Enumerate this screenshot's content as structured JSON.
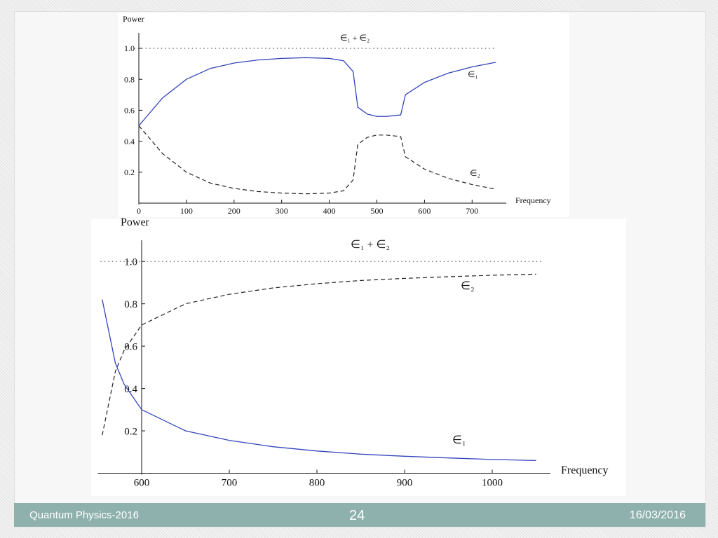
{
  "chart_data": [
    {
      "type": "line",
      "y_label": "Power",
      "x_label": "Frequency",
      "xlim": [
        0,
        760
      ],
      "ylim": [
        0,
        1.1
      ],
      "xticks": [
        0,
        100,
        200,
        300,
        400,
        500,
        600,
        700
      ],
      "yticks": [
        0.2,
        0.4,
        0.6,
        0.8,
        {
          "value": 1,
          "label": "1.0"
        }
      ],
      "series": [
        {
          "name": "∈₁ + ∈₂",
          "color": "#555555",
          "style": "dotted",
          "x": [
            -10,
            750
          ],
          "values": [
            1,
            1
          ]
        },
        {
          "name": "∈₁",
          "color": "#3344bb",
          "style": "solid",
          "x": [
            0,
            50,
            100,
            150,
            200,
            250,
            300,
            350,
            400,
            430,
            450,
            460,
            480,
            500,
            520,
            550,
            560,
            600,
            650,
            700,
            750
          ],
          "values": [
            0.5,
            0.68,
            0.8,
            0.87,
            0.905,
            0.925,
            0.935,
            0.94,
            0.935,
            0.92,
            0.85,
            0.62,
            0.575,
            0.56,
            0.56,
            0.57,
            0.7,
            0.78,
            0.84,
            0.88,
            0.91
          ]
        },
        {
          "name": "∈₂",
          "color": "#222222",
          "style": "dashed",
          "x": [
            0,
            50,
            100,
            150,
            200,
            250,
            300,
            350,
            400,
            430,
            450,
            460,
            480,
            500,
            520,
            550,
            560,
            600,
            650,
            700,
            750
          ],
          "values": [
            0.5,
            0.32,
            0.2,
            0.13,
            0.095,
            0.075,
            0.065,
            0.06,
            0.065,
            0.08,
            0.15,
            0.38,
            0.425,
            0.44,
            0.44,
            0.43,
            0.3,
            0.22,
            0.16,
            0.12,
            0.09
          ]
        }
      ]
    },
    {
      "type": "line",
      "y_label": "Power",
      "x_label": "Frequency",
      "xlim": [
        550,
        1060
      ],
      "ylim": [
        0,
        1.1
      ],
      "xticks": [
        600,
        700,
        800,
        900,
        1000
      ],
      "yticks": [
        0.2,
        0.4,
        0.6,
        0.8,
        {
          "value": 1,
          "label": "1.0"
        }
      ],
      "series": [
        {
          "name": "∈₁ + ∈₂",
          "color": "#555555",
          "style": "dotted",
          "x": [
            553,
            1057
          ],
          "values": [
            1,
            1
          ]
        },
        {
          "name": "∈₂",
          "color": "#222222",
          "style": "dashed",
          "x": [
            555,
            570,
            580,
            600,
            650,
            700,
            750,
            800,
            850,
            900,
            950,
            1000,
            1050
          ],
          "values": [
            0.18,
            0.48,
            0.58,
            0.7,
            0.8,
            0.845,
            0.875,
            0.895,
            0.91,
            0.92,
            0.928,
            0.935,
            0.94
          ]
        },
        {
          "name": "∈₁",
          "color": "#3344bb",
          "style": "solid",
          "x": [
            555,
            570,
            580,
            600,
            650,
            700,
            750,
            800,
            850,
            900,
            950,
            1000,
            1050
          ],
          "values": [
            0.82,
            0.52,
            0.42,
            0.3,
            0.2,
            0.155,
            0.125,
            0.105,
            0.09,
            0.08,
            0.072,
            0.065,
            0.06
          ]
        }
      ]
    }
  ],
  "footer": {
    "left": "Quantum Physics-2016",
    "center": "24",
    "right": "16/03/2016"
  }
}
